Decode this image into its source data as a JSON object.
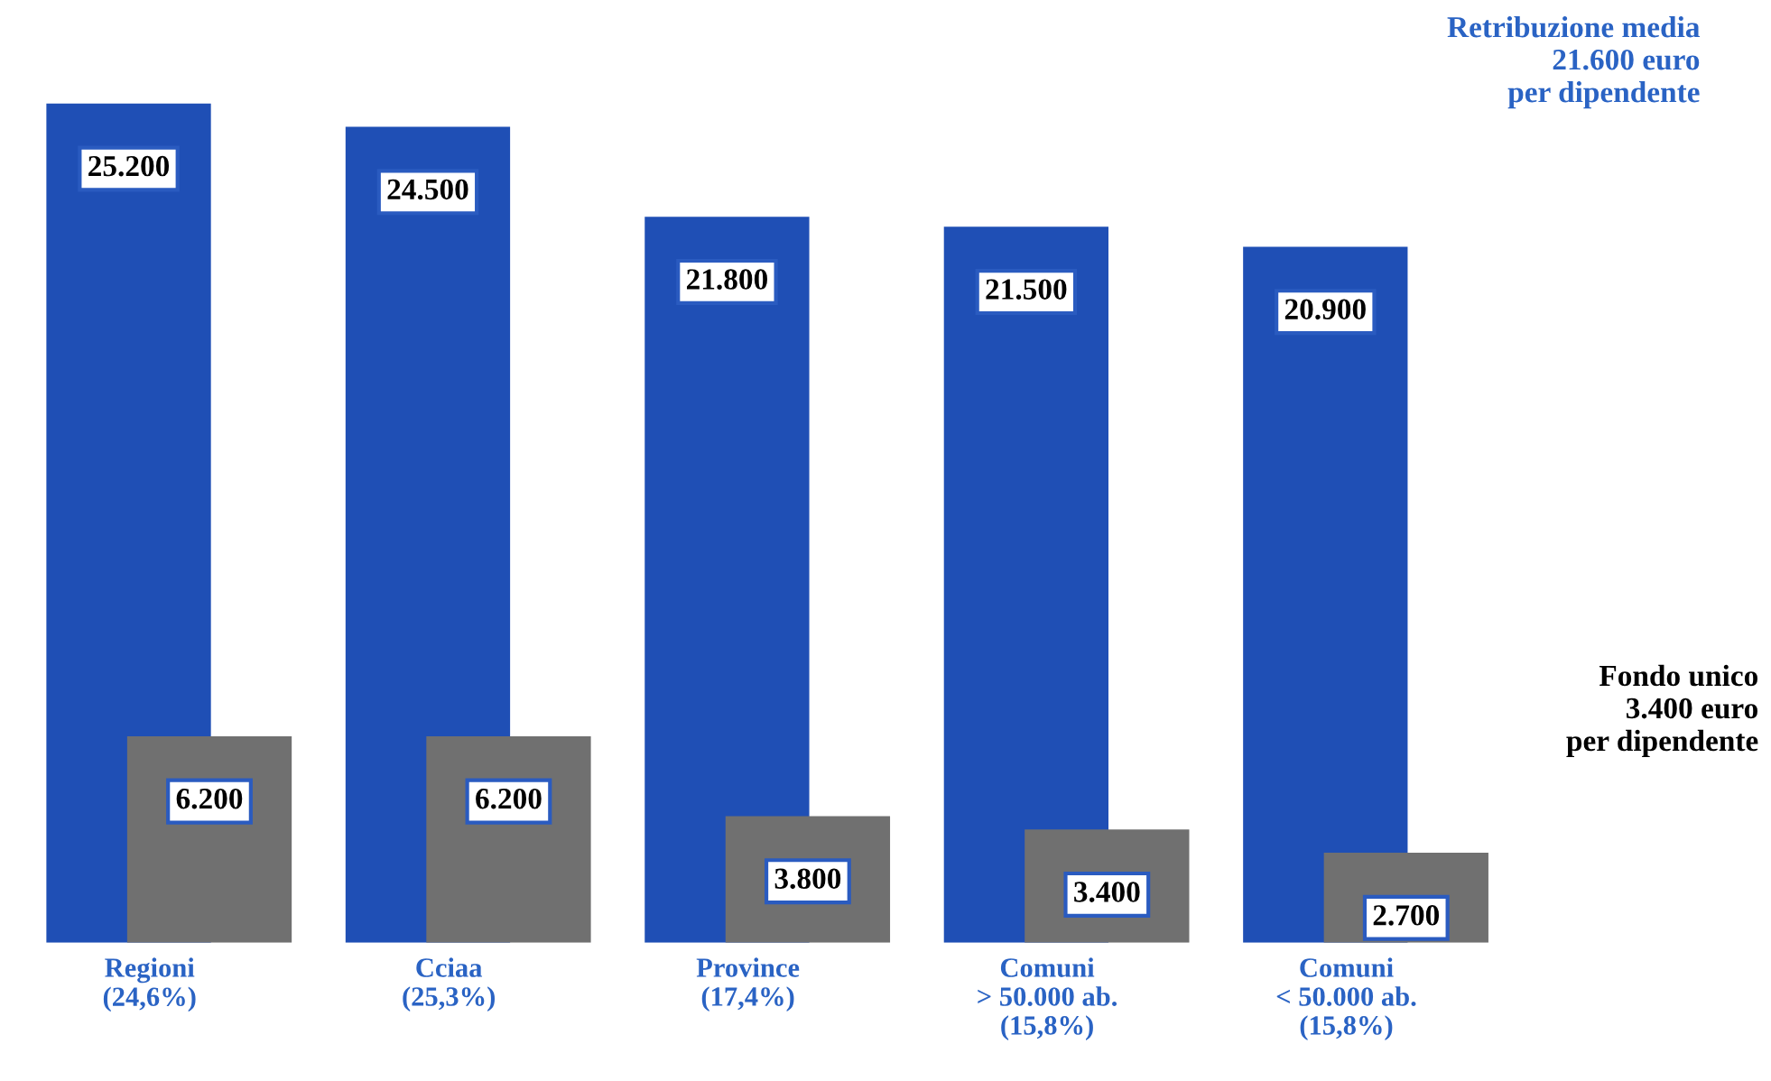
{
  "chart_data": {
    "type": "bar",
    "categories": [
      "Regioni\n(24,6%)",
      "Cciaa\n(25,3%)",
      "Province\n(17,4%)",
      "Comuni\n> 50.000 ab.\n(15,8%)",
      "Comuni\n< 50.000 ab.\n(15,8%)"
    ],
    "series": [
      {
        "color": "#1f4fb5",
        "values": [
          25200,
          24500,
          21800,
          21500,
          20900
        ],
        "value_labels": [
          "25.200",
          "24.500",
          "21.800",
          "21.500",
          "20.900"
        ]
      },
      {
        "color": "#707070",
        "values": [
          6200,
          6200,
          3800,
          3400,
          2700
        ],
        "value_labels": [
          "6.200",
          "6.200",
          "3.800",
          "3.400",
          "2.700"
        ]
      }
    ],
    "annotations": [
      "Retribuzione media\n21.600 euro\nper dipendente",
      "Fondo unico\n3.400 euro\nper dipendente"
    ],
    "grid": false,
    "legend": false
  }
}
